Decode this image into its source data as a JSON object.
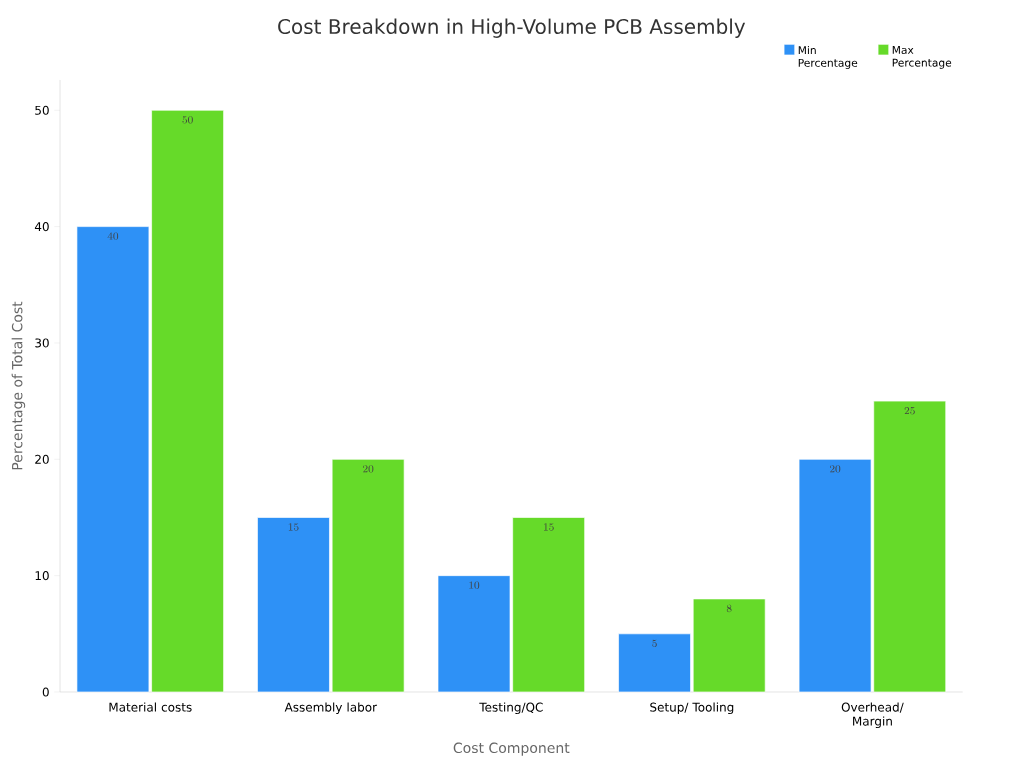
{
  "chart_data": {
    "type": "bar",
    "title": "Cost Breakdown in High-Volume PCB Assembly",
    "xlabel": "Cost Component",
    "ylabel": "Percentage of Total Cost",
    "categories": [
      "Material costs",
      "Assembly labor",
      "Testing/QC",
      "Setup/ Tooling",
      "Overhead/ Margin"
    ],
    "series": [
      {
        "name": "Min Percentage",
        "color": "#2e91f6",
        "values": [
          40,
          15,
          10,
          5,
          20
        ]
      },
      {
        "name": "Max Percentage",
        "color": "#66da29",
        "values": [
          50,
          20,
          15,
          8,
          25
        ]
      }
    ],
    "ylim": [
      0,
      52.6
    ],
    "yticks": [
      0,
      10,
      20,
      30,
      40,
      50
    ],
    "data_labels": true,
    "legend": "top right",
    "grid": false
  }
}
